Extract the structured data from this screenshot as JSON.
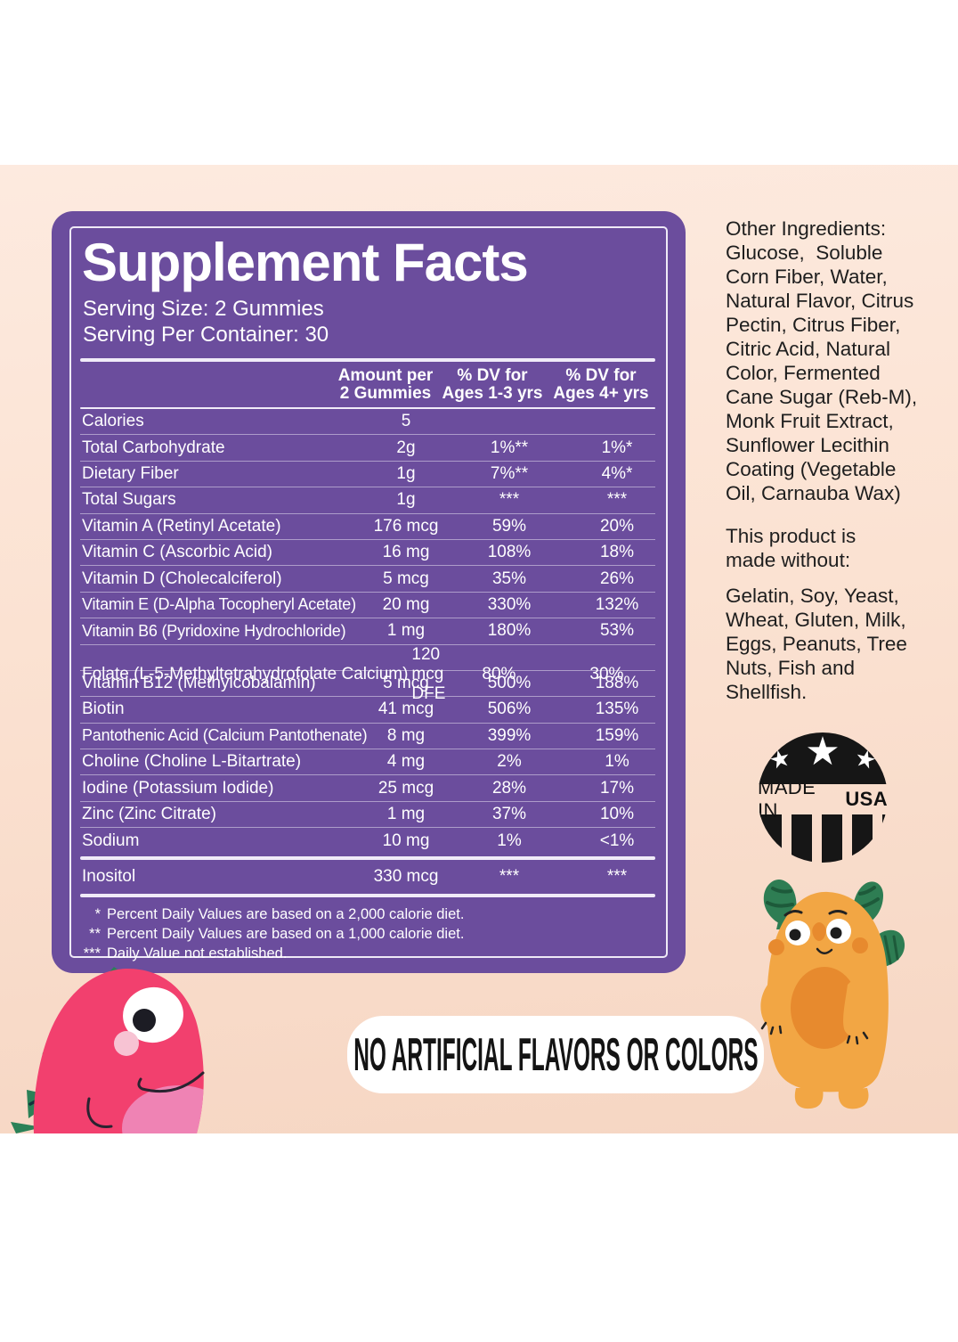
{
  "panel": {
    "title": "Supplement Facts",
    "serving_size": "Serving Size: 2 Gummies",
    "serving_per_container": "Serving Per Container: 30",
    "columns": [
      "Amount per\n2 Gummies",
      "% DV for\nAges 1-3 yrs",
      "% DV for\nAges 4+ yrs"
    ],
    "rows": [
      {
        "name": "Calories",
        "amount": "5",
        "dv_1_3": "",
        "dv_4plus": ""
      },
      {
        "name": "Total Carbohydrate",
        "amount": "2g",
        "dv_1_3": "1%**",
        "dv_4plus": "1%*"
      },
      {
        "name": "Dietary Fiber",
        "amount": "1g",
        "dv_1_3": "7%**",
        "dv_4plus": "4%*"
      },
      {
        "name": "Total Sugars",
        "amount": "1g",
        "dv_1_3": "***",
        "dv_4plus": "***"
      },
      {
        "name": "Vitamin A (Retinyl Acetate)",
        "amount": "176 mcg",
        "dv_1_3": "59%",
        "dv_4plus": "20%"
      },
      {
        "name": "Vitamin C (Ascorbic Acid)",
        "amount": "16 mg",
        "dv_1_3": "108%",
        "dv_4plus": "18%"
      },
      {
        "name": "Vitamin D (Cholecalciferol)",
        "amount": "5 mcg",
        "dv_1_3": "35%",
        "dv_4plus": "26%"
      },
      {
        "name": "Vitamin E (D-Alpha Tocopheryl Acetate)",
        "amount": "20 mg",
        "dv_1_3": "330%",
        "dv_4plus": "132%"
      },
      {
        "name": "Vitamin B6 (Pyridoxine Hydrochloride)",
        "amount": "1 mg",
        "dv_1_3": "180%",
        "dv_4plus": "53%"
      },
      {
        "name": "Folate (L-5-Methyltetrahydrofolate Calcium)",
        "amount": "120 mcg DFE",
        "dv_1_3": "80%",
        "dv_4plus": "30%"
      },
      {
        "name": "Vitamin B12 (Methylcobalamin)",
        "amount": "5 mcg",
        "dv_1_3": "500%",
        "dv_4plus": "188%"
      },
      {
        "name": "Biotin",
        "amount": "41 mcg",
        "dv_1_3": "506%",
        "dv_4plus": "135%"
      },
      {
        "name": "Pantothenic Acid (Calcium Pantothenate)",
        "amount": "8 mg",
        "dv_1_3": "399%",
        "dv_4plus": "159%"
      },
      {
        "name": "Choline (Choline L-Bitartrate)",
        "amount": "4 mg",
        "dv_1_3": "2%",
        "dv_4plus": "1%"
      },
      {
        "name": "Iodine (Potassium Iodide)",
        "amount": "25 mcg",
        "dv_1_3": "28%",
        "dv_4plus": "17%"
      },
      {
        "name": "Zinc (Zinc Citrate)",
        "amount": "1 mg",
        "dv_1_3": "37%",
        "dv_4plus": "10%"
      },
      {
        "name": "Sodium",
        "amount": "10 mg",
        "dv_1_3": "1%",
        "dv_4plus": "<1%"
      }
    ],
    "inositol_row": {
      "name": "Inositol",
      "amount": "330 mcg",
      "dv_1_3": "***",
      "dv_4plus": "***"
    },
    "footnotes": [
      {
        "mark": "*",
        "text": "Percent Daily Values are based on a 2,000 calorie diet."
      },
      {
        "mark": "**",
        "text": "Percent Daily Values are based on a 1,000 calorie diet."
      },
      {
        "mark": "***",
        "text": "Daily Value not established."
      }
    ]
  },
  "right": {
    "other_ingredients": "Other Ingredients:\nGlucose,  Soluble\nCorn Fiber, Water,\nNatural Flavor, Citrus\nPectin, Citrus Fiber,\nCitric Acid, Natural\nColor, Fermented\nCane Sugar (Reb-M),\nMonk Fruit Extract,\nSunflower Lecithin\nCoating (Vegetable\nOil, Carnauba Wax)",
    "made_without_heading": "This product is\nmade without:",
    "made_without_list": "Gelatin, Soy, Yeast,\nWheat, Gluten, Milk,\nEggs, Peanuts, Tree\nNuts, Fish and\nShellfish.",
    "badge": {
      "made_in": "MADE IN",
      "usa": "USA",
      "star": "★"
    }
  },
  "banner": {
    "text": "NO ARTIFICIAL FLAVORS OR COLORS"
  },
  "colors": {
    "panel_purple": "#6b4d9d",
    "peach_background": "#fbe2d2",
    "panel_text": "#ffffff",
    "body_text": "#1e1e1e",
    "badge_black": "#161616",
    "pill_white": "#ffffff",
    "dino_pink": "#f2406e",
    "dino_belly_pink": "#ef83b4",
    "monster_yellow": "#f2a644",
    "monster_belly_orange": "#e78a2e",
    "mascot_green": "#2e7d53"
  }
}
